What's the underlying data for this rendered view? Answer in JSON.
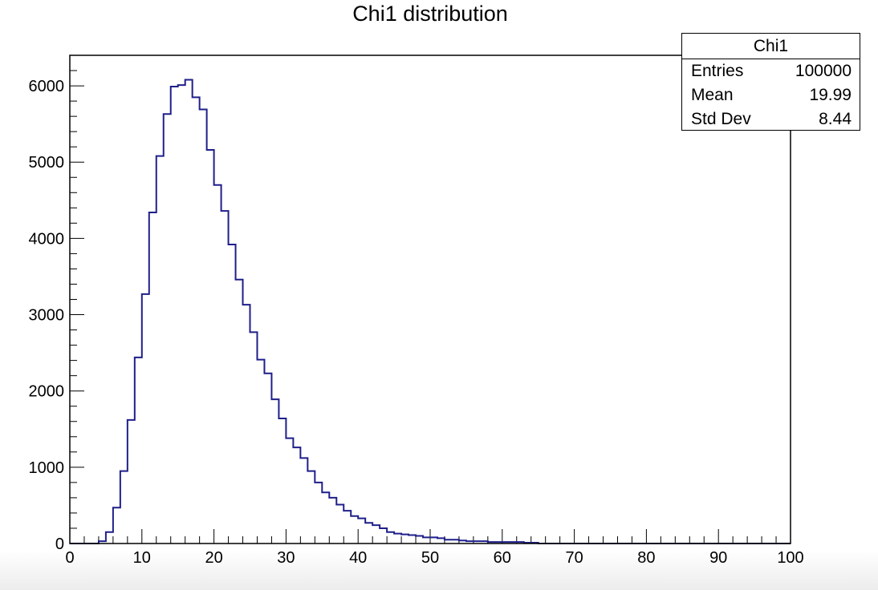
{
  "chart_data": {
    "type": "bar",
    "subtype": "histogram",
    "title": "Chi1 distribution",
    "xlabel": "",
    "ylabel": "",
    "xlim": [
      0,
      100
    ],
    "ylim": [
      0,
      6400
    ],
    "bin_width": 1,
    "bins_start": 0,
    "x_ticks": [
      0,
      10,
      20,
      30,
      40,
      50,
      60,
      70,
      80,
      90,
      100
    ],
    "y_ticks": [
      0,
      1000,
      2000,
      3000,
      4000,
      5000,
      6000
    ],
    "line_color": "#1f1f8a",
    "values": [
      0,
      0,
      0,
      0,
      30,
      150,
      470,
      950,
      1620,
      2440,
      3270,
      4340,
      5080,
      5630,
      5990,
      6010,
      6080,
      5850,
      5690,
      5160,
      4700,
      4360,
      3920,
      3460,
      3130,
      2770,
      2410,
      2230,
      1890,
      1640,
      1380,
      1260,
      1120,
      950,
      800,
      670,
      600,
      510,
      430,
      360,
      330,
      270,
      240,
      200,
      150,
      130,
      120,
      110,
      100,
      80,
      80,
      70,
      50,
      50,
      40,
      30,
      30,
      30,
      20,
      20,
      20,
      20,
      20,
      10,
      10,
      0,
      0,
      0,
      0,
      0,
      0,
      0,
      0,
      0,
      0,
      0,
      0,
      0,
      0,
      0,
      0,
      0,
      0,
      0,
      0,
      0,
      0,
      0,
      0,
      0,
      0,
      0,
      0,
      0,
      0,
      0,
      0,
      0,
      0,
      0
    ],
    "stats": {
      "name": "Chi1",
      "entries_label": "Entries",
      "entries": "100000",
      "mean_label": "Mean",
      "mean": "19.99",
      "stddev_label": "Std Dev",
      "stddev": "8.44"
    }
  }
}
